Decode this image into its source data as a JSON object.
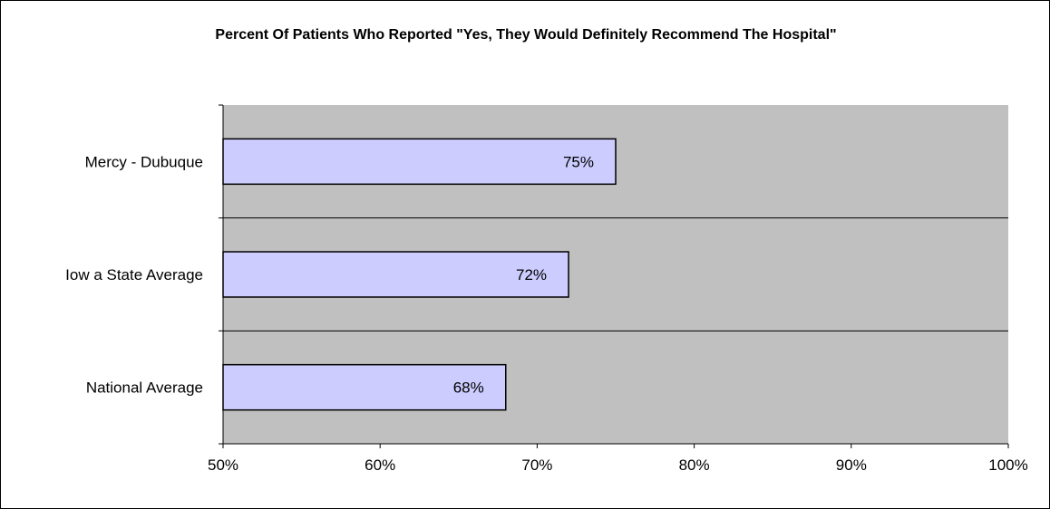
{
  "chart_data": {
    "type": "bar",
    "orientation": "horizontal",
    "title": "Percent Of Patients Who Reported \"Yes, They Would Definitely Recommend The Hospital\"",
    "categories": [
      "Mercy - Dubuque",
      "Iow a State Average",
      "National Average"
    ],
    "values": [
      75,
      72,
      68
    ],
    "data_labels": [
      "75%",
      "72%",
      "68%"
    ],
    "xlim": [
      50,
      100
    ],
    "x_ticks": [
      50,
      60,
      70,
      80,
      90,
      100
    ],
    "x_tick_labels": [
      "50%",
      "60%",
      "70%",
      "80%",
      "90%",
      "100%"
    ],
    "xlabel": "",
    "ylabel": "",
    "grid": "horizontal",
    "legend": "none",
    "colors": {
      "plot_background": "#c0c0c0",
      "bar_fill": "#ccccff",
      "bar_stroke": "#000000",
      "gridline": "#000000"
    }
  }
}
